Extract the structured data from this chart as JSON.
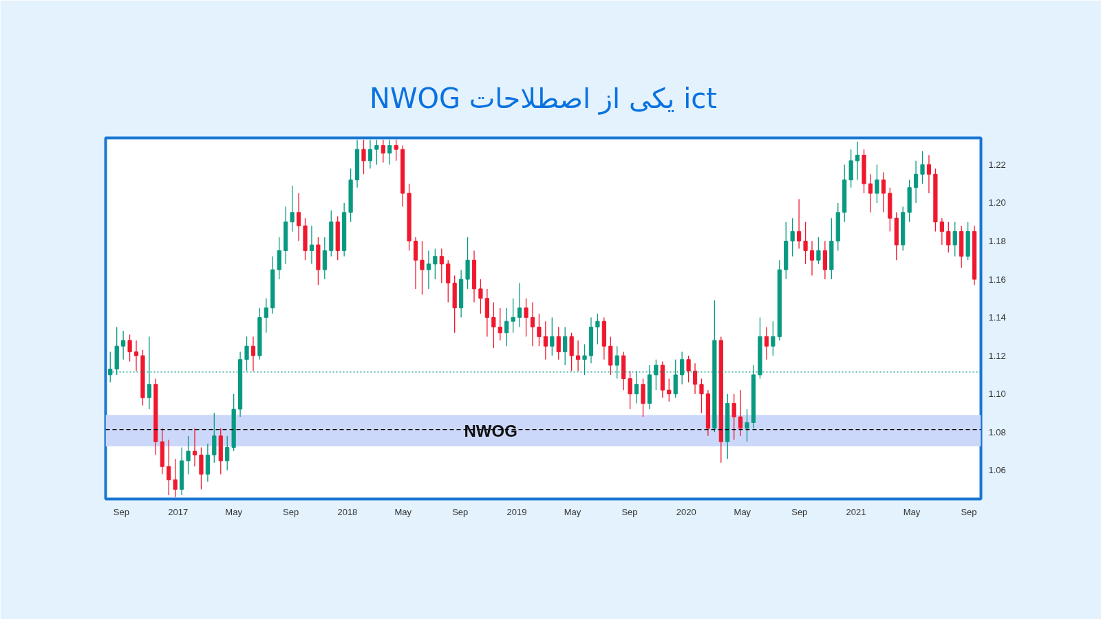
{
  "chart_data": {
    "type": "candlestick",
    "title": "NWOG یکی از اصطلاحات ict",
    "x": [
      "2016-08-08",
      "2016-08-22",
      "2016-09-05",
      "2016-09-19",
      "2016-10-03",
      "2016-10-17",
      "2016-10-31",
      "2016-11-14",
      "2016-11-28",
      "2016-12-12",
      "2016-12-26",
      "2017-01-09",
      "2017-01-23",
      "2017-02-06",
      "2017-02-20",
      "2017-03-06",
      "2017-03-20",
      "2017-04-03",
      "2017-04-17",
      "2017-05-01",
      "2017-05-15",
      "2017-05-29",
      "2017-06-12",
      "2017-06-26",
      "2017-07-10",
      "2017-07-24",
      "2017-08-07",
      "2017-08-21",
      "2017-09-04",
      "2017-09-18",
      "2017-10-02",
      "2017-10-16",
      "2017-10-30",
      "2017-11-13",
      "2017-11-27",
      "2017-12-11",
      "2017-12-25",
      "2018-01-08",
      "2018-01-22",
      "2018-02-05",
      "2018-02-19",
      "2018-03-05",
      "2018-03-19",
      "2018-04-02",
      "2018-04-16",
      "2018-04-30",
      "2018-05-14",
      "2018-05-28",
      "2018-06-11",
      "2018-06-25",
      "2018-07-09",
      "2018-07-23",
      "2018-08-06",
      "2018-08-20",
      "2018-09-03",
      "2018-09-17",
      "2018-10-01",
      "2018-10-15",
      "2018-10-29",
      "2018-11-12",
      "2018-11-26",
      "2018-12-10",
      "2018-12-24",
      "2019-01-07",
      "2019-01-21",
      "2019-02-04",
      "2019-02-18",
      "2019-03-04",
      "2019-03-18",
      "2019-04-01",
      "2019-04-15",
      "2019-04-29",
      "2019-05-13",
      "2019-05-27",
      "2019-06-10",
      "2019-06-24",
      "2019-07-08",
      "2019-07-22",
      "2019-08-05",
      "2019-08-19",
      "2019-09-02",
      "2019-09-16",
      "2019-09-30",
      "2019-10-14",
      "2019-10-28",
      "2019-11-11",
      "2019-11-25",
      "2019-12-09",
      "2019-12-23",
      "2020-01-06",
      "2020-01-20",
      "2020-02-03",
      "2020-02-17",
      "2020-03-02",
      "2020-03-16",
      "2020-03-30",
      "2020-04-13",
      "2020-04-27",
      "2020-05-11",
      "2020-05-25",
      "2020-06-08",
      "2020-06-22",
      "2020-07-06",
      "2020-07-20",
      "2020-08-03",
      "2020-08-17",
      "2020-08-31",
      "2020-09-14",
      "2020-09-28",
      "2020-10-12",
      "2020-10-26",
      "2020-11-09",
      "2020-11-23",
      "2020-12-07",
      "2020-12-21",
      "2021-01-04",
      "2021-01-18",
      "2021-02-01",
      "2021-02-15",
      "2021-03-01",
      "2021-03-15",
      "2021-03-29",
      "2021-04-12",
      "2021-04-26",
      "2021-05-10",
      "2021-05-24",
      "2021-06-07",
      "2021-06-21",
      "2021-07-05",
      "2021-07-19",
      "2021-08-02",
      "2021-08-16",
      "2021-08-30",
      "2021-09-13"
    ],
    "ohlc": [
      [
        1.11,
        1.122,
        1.106,
        1.113
      ],
      [
        1.113,
        1.135,
        1.11,
        1.125
      ],
      [
        1.125,
        1.133,
        1.118,
        1.128
      ],
      [
        1.128,
        1.131,
        1.117,
        1.122
      ],
      [
        1.122,
        1.128,
        1.112,
        1.12
      ],
      [
        1.12,
        1.123,
        1.094,
        1.098
      ],
      [
        1.098,
        1.13,
        1.092,
        1.105
      ],
      [
        1.105,
        1.108,
        1.068,
        1.075
      ],
      [
        1.075,
        1.082,
        1.058,
        1.062
      ],
      [
        1.062,
        1.076,
        1.047,
        1.055
      ],
      [
        1.055,
        1.066,
        1.046,
        1.05
      ],
      [
        1.05,
        1.072,
        1.047,
        1.065
      ],
      [
        1.065,
        1.078,
        1.058,
        1.07
      ],
      [
        1.07,
        1.082,
        1.062,
        1.068
      ],
      [
        1.068,
        1.072,
        1.05,
        1.058
      ],
      [
        1.058,
        1.074,
        1.054,
        1.068
      ],
      [
        1.068,
        1.09,
        1.064,
        1.078
      ],
      [
        1.078,
        1.082,
        1.058,
        1.065
      ],
      [
        1.065,
        1.078,
        1.06,
        1.072
      ],
      [
        1.072,
        1.1,
        1.07,
        1.092
      ],
      [
        1.092,
        1.122,
        1.088,
        1.118
      ],
      [
        1.118,
        1.13,
        1.112,
        1.125
      ],
      [
        1.125,
        1.13,
        1.112,
        1.12
      ],
      [
        1.12,
        1.145,
        1.118,
        1.14
      ],
      [
        1.14,
        1.15,
        1.132,
        1.145
      ],
      [
        1.145,
        1.172,
        1.142,
        1.165
      ],
      [
        1.165,
        1.182,
        1.16,
        1.175
      ],
      [
        1.175,
        1.198,
        1.168,
        1.19
      ],
      [
        1.19,
        1.209,
        1.185,
        1.195
      ],
      [
        1.195,
        1.205,
        1.18,
        1.188
      ],
      [
        1.188,
        1.192,
        1.17,
        1.175
      ],
      [
        1.175,
        1.188,
        1.168,
        1.178
      ],
      [
        1.178,
        1.182,
        1.157,
        1.165
      ],
      [
        1.165,
        1.182,
        1.16,
        1.175
      ],
      [
        1.175,
        1.196,
        1.172,
        1.19
      ],
      [
        1.19,
        1.193,
        1.17,
        1.175
      ],
      [
        1.175,
        1.2,
        1.172,
        1.195
      ],
      [
        1.195,
        1.218,
        1.19,
        1.212
      ],
      [
        1.212,
        1.233,
        1.208,
        1.228
      ],
      [
        1.228,
        1.233,
        1.215,
        1.222
      ],
      [
        1.222,
        1.233,
        1.218,
        1.228
      ],
      [
        1.228,
        1.233,
        1.22,
        1.23
      ],
      [
        1.23,
        1.233,
        1.221,
        1.226
      ],
      [
        1.226,
        1.233,
        1.22,
        1.23
      ],
      [
        1.23,
        1.233,
        1.222,
        1.228
      ],
      [
        1.228,
        1.23,
        1.198,
        1.205
      ],
      [
        1.205,
        1.21,
        1.175,
        1.18
      ],
      [
        1.18,
        1.182,
        1.155,
        1.17
      ],
      [
        1.17,
        1.18,
        1.152,
        1.165
      ],
      [
        1.165,
        1.175,
        1.155,
        1.168
      ],
      [
        1.168,
        1.176,
        1.16,
        1.172
      ],
      [
        1.172,
        1.176,
        1.158,
        1.168
      ],
      [
        1.168,
        1.17,
        1.148,
        1.158
      ],
      [
        1.158,
        1.162,
        1.132,
        1.145
      ],
      [
        1.145,
        1.165,
        1.14,
        1.16
      ],
      [
        1.16,
        1.182,
        1.155,
        1.17
      ],
      [
        1.17,
        1.175,
        1.148,
        1.155
      ],
      [
        1.155,
        1.16,
        1.142,
        1.15
      ],
      [
        1.15,
        1.155,
        1.13,
        1.14
      ],
      [
        1.14,
        1.148,
        1.124,
        1.135
      ],
      [
        1.135,
        1.145,
        1.128,
        1.132
      ],
      [
        1.132,
        1.145,
        1.125,
        1.138
      ],
      [
        1.138,
        1.15,
        1.132,
        1.14
      ],
      [
        1.14,
        1.158,
        1.135,
        1.145
      ],
      [
        1.145,
        1.15,
        1.13,
        1.14
      ],
      [
        1.14,
        1.148,
        1.125,
        1.135
      ],
      [
        1.135,
        1.142,
        1.125,
        1.13
      ],
      [
        1.13,
        1.138,
        1.118,
        1.125
      ],
      [
        1.125,
        1.14,
        1.12,
        1.13
      ],
      [
        1.13,
        1.135,
        1.118,
        1.122
      ],
      [
        1.122,
        1.135,
        1.115,
        1.13
      ],
      [
        1.13,
        1.132,
        1.112,
        1.12
      ],
      [
        1.12,
        1.128,
        1.112,
        1.118
      ],
      [
        1.118,
        1.126,
        1.11,
        1.12
      ],
      [
        1.12,
        1.14,
        1.116,
        1.135
      ],
      [
        1.135,
        1.142,
        1.126,
        1.138
      ],
      [
        1.138,
        1.14,
        1.118,
        1.125
      ],
      [
        1.125,
        1.13,
        1.11,
        1.115
      ],
      [
        1.115,
        1.125,
        1.108,
        1.12
      ],
      [
        1.12,
        1.122,
        1.102,
        1.108
      ],
      [
        1.108,
        1.112,
        1.092,
        1.1
      ],
      [
        1.1,
        1.112,
        1.095,
        1.105
      ],
      [
        1.105,
        1.108,
        1.088,
        1.095
      ],
      [
        1.095,
        1.115,
        1.092,
        1.11
      ],
      [
        1.11,
        1.118,
        1.102,
        1.115
      ],
      [
        1.115,
        1.117,
        1.098,
        1.102
      ],
      [
        1.102,
        1.108,
        1.096,
        1.1
      ],
      [
        1.1,
        1.118,
        1.098,
        1.11
      ],
      [
        1.11,
        1.122,
        1.105,
        1.118
      ],
      [
        1.118,
        1.12,
        1.106,
        1.112
      ],
      [
        1.112,
        1.116,
        1.1,
        1.105
      ],
      [
        1.105,
        1.108,
        1.09,
        1.1
      ],
      [
        1.1,
        1.102,
        1.078,
        1.082
      ],
      [
        1.082,
        1.149,
        1.08,
        1.128
      ],
      [
        1.128,
        1.13,
        1.064,
        1.075
      ],
      [
        1.075,
        1.1,
        1.066,
        1.095
      ],
      [
        1.095,
        1.1,
        1.076,
        1.088
      ],
      [
        1.088,
        1.102,
        1.078,
        1.082
      ],
      [
        1.082,
        1.092,
        1.075,
        1.085
      ],
      [
        1.085,
        1.115,
        1.082,
        1.11
      ],
      [
        1.11,
        1.14,
        1.108,
        1.13
      ],
      [
        1.13,
        1.135,
        1.118,
        1.125
      ],
      [
        1.125,
        1.138,
        1.12,
        1.13
      ],
      [
        1.13,
        1.17,
        1.128,
        1.165
      ],
      [
        1.165,
        1.19,
        1.16,
        1.18
      ],
      [
        1.18,
        1.192,
        1.172,
        1.185
      ],
      [
        1.185,
        1.202,
        1.176,
        1.18
      ],
      [
        1.18,
        1.19,
        1.168,
        1.175
      ],
      [
        1.175,
        1.18,
        1.162,
        1.17
      ],
      [
        1.17,
        1.182,
        1.168,
        1.175
      ],
      [
        1.175,
        1.18,
        1.16,
        1.165
      ],
      [
        1.165,
        1.192,
        1.16,
        1.18
      ],
      [
        1.18,
        1.2,
        1.175,
        1.195
      ],
      [
        1.195,
        1.22,
        1.19,
        1.212
      ],
      [
        1.212,
        1.228,
        1.208,
        1.222
      ],
      [
        1.222,
        1.232,
        1.212,
        1.225
      ],
      [
        1.225,
        1.228,
        1.205,
        1.21
      ],
      [
        1.21,
        1.215,
        1.195,
        1.205
      ],
      [
        1.205,
        1.22,
        1.2,
        1.212
      ],
      [
        1.212,
        1.216,
        1.195,
        1.205
      ],
      [
        1.205,
        1.208,
        1.185,
        1.192
      ],
      [
        1.192,
        1.195,
        1.17,
        1.178
      ],
      [
        1.178,
        1.198,
        1.175,
        1.195
      ],
      [
        1.195,
        1.212,
        1.19,
        1.208
      ],
      [
        1.208,
        1.222,
        1.2,
        1.215
      ],
      [
        1.215,
        1.227,
        1.21,
        1.22
      ],
      [
        1.22,
        1.225,
        1.205,
        1.215
      ],
      [
        1.215,
        1.218,
        1.185,
        1.19
      ],
      [
        1.19,
        1.192,
        1.178,
        1.185
      ],
      [
        1.185,
        1.19,
        1.174,
        1.178
      ],
      [
        1.178,
        1.19,
        1.172,
        1.185
      ],
      [
        1.185,
        1.188,
        1.166,
        1.172
      ],
      [
        1.172,
        1.19,
        1.17,
        1.185
      ],
      [
        1.185,
        1.188,
        1.157,
        1.16
      ]
    ],
    "xlim": [
      "2016-07-29",
      "2021-09-27"
    ],
    "xticks": [
      {
        "value": "2016-09-01",
        "label": "Sep"
      },
      {
        "value": "2017-01-01",
        "label": "2017"
      },
      {
        "value": "2017-05-01",
        "label": "May"
      },
      {
        "value": "2017-09-01",
        "label": "Sep"
      },
      {
        "value": "2018-01-01",
        "label": "2018"
      },
      {
        "value": "2018-05-01",
        "label": "May"
      },
      {
        "value": "2018-09-01",
        "label": "Sep"
      },
      {
        "value": "2019-01-01",
        "label": "2019"
      },
      {
        "value": "2019-05-01",
        "label": "May"
      },
      {
        "value": "2019-09-01",
        "label": "Sep"
      },
      {
        "value": "2020-01-01",
        "label": "2020"
      },
      {
        "value": "2020-05-01",
        "label": "May"
      },
      {
        "value": "2020-09-01",
        "label": "Sep"
      },
      {
        "value": "2021-01-01",
        "label": "2021"
      },
      {
        "value": "2021-05-01",
        "label": "May"
      },
      {
        "value": "2021-09-01",
        "label": "Sep"
      }
    ],
    "ylim": [
      1.045,
      1.234
    ],
    "yticks": [
      {
        "value": 1.06,
        "label": "1.06"
      },
      {
        "value": 1.08,
        "label": "1.08"
      },
      {
        "value": 1.1,
        "label": "1.10"
      },
      {
        "value": 1.12,
        "label": "1.12"
      },
      {
        "value": 1.14,
        "label": "1.14"
      },
      {
        "value": 1.16,
        "label": "1.16"
      },
      {
        "value": 1.18,
        "label": "1.18"
      },
      {
        "value": 1.2,
        "label": "1.20"
      },
      {
        "value": 1.22,
        "label": "1.22"
      }
    ],
    "bands": [
      {
        "axis": "y",
        "from": 1.0725,
        "to": 1.089,
        "label": "NWOG",
        "color": "#ccd8fa"
      }
    ],
    "ref_lines": [
      {
        "axis": "y",
        "value": 1.0813,
        "color": "#000000",
        "line_style": "dashed"
      },
      {
        "axis": "y",
        "value": 1.1115,
        "color": "#089981",
        "line_style": "dotted"
      }
    ],
    "grid": false
  }
}
